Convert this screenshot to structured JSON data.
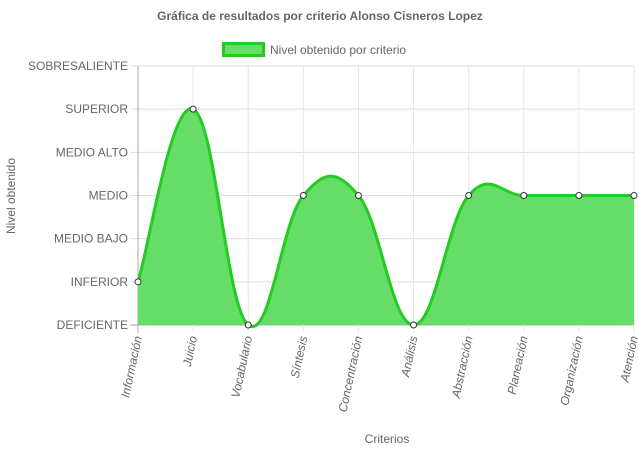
{
  "chart_data": {
    "type": "area",
    "title": "Gráfica de resultados por criterio Alonso Cisneros Lopez",
    "xlabel": "Criterios",
    "ylabel": "Nivel obtenido",
    "legend": "top",
    "grid": true,
    "categories": [
      "Información",
      "Juicio",
      "Vocabulario",
      "Síntesis",
      "Concentración",
      "Análisis",
      "Abstracción",
      "Planeación",
      "Organización",
      "Atención"
    ],
    "y_levels": [
      "DEFICIENTE",
      "INFERIOR",
      "MEDIO BAJO",
      "MEDIO",
      "MEDIO ALTO",
      "SUPERIOR",
      "SOBRESALIENTE"
    ],
    "ylim": [
      0,
      6
    ],
    "series": [
      {
        "name": "Nivel obtenido por criterio",
        "values": [
          1,
          5,
          0,
          3,
          3,
          0,
          3,
          3,
          3,
          3
        ],
        "value_labels": [
          "INFERIOR",
          "SUPERIOR",
          "DEFICIENTE",
          "MEDIO",
          "MEDIO",
          "DEFICIENTE",
          "MEDIO",
          "MEDIO",
          "MEDIO",
          "MEDIO"
        ],
        "fill_color": "#66dd66",
        "line_color": "#22cc22"
      }
    ]
  }
}
